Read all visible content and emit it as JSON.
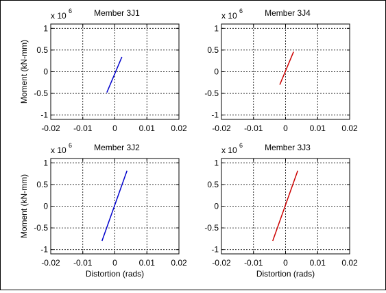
{
  "figure": {
    "background": "#ffffff",
    "grid": true
  },
  "chart_data": [
    {
      "type": "line",
      "title": "Member 3J1",
      "xlabel": "",
      "ylabel": "Moment (kN-mm)",
      "exponent_base": "x 10",
      "exponent_power": "6",
      "xlim": [
        -0.02,
        0.02
      ],
      "ylim": [
        -1.1,
        1.1
      ],
      "xticks": [
        -0.02,
        -0.01,
        0,
        0.01,
        0.02
      ],
      "xtick_labels": [
        "-0.02",
        "-0.01",
        "0",
        "0.01",
        "0.02"
      ],
      "yticks": [
        -1,
        -0.5,
        0,
        0.5,
        1
      ],
      "ytick_labels": [
        "-1",
        "-0.5",
        "0",
        "0.5",
        "1"
      ],
      "series": [
        {
          "color": "#0000cc",
          "x": [
            -0.0025,
            0.0022
          ],
          "y": [
            -0.48,
            0.34
          ]
        }
      ]
    },
    {
      "type": "line",
      "title": "Member 3J4",
      "xlabel": "",
      "ylabel": "",
      "exponent_base": "x 10",
      "exponent_power": "6",
      "xlim": [
        -0.02,
        0.02
      ],
      "ylim": [
        -1.1,
        1.1
      ],
      "xticks": [
        -0.02,
        -0.01,
        0,
        0.01,
        0.02
      ],
      "xtick_labels": [
        "-0.02",
        "-0.01",
        "0",
        "0.01",
        "0.02"
      ],
      "yticks": [
        -1,
        -0.5,
        0,
        0.5,
        1
      ],
      "ytick_labels": [
        "-1",
        "-0.5",
        "0",
        "0.5",
        "1"
      ],
      "series": [
        {
          "color": "#cc0000",
          "x": [
            -0.0018,
            0.0025
          ],
          "y": [
            -0.3,
            0.46
          ]
        }
      ]
    },
    {
      "type": "line",
      "title": "Member 3J2",
      "xlabel": "Distortion (rads)",
      "ylabel": "Moment (kN-mm)",
      "exponent_base": "x 10",
      "exponent_power": "6",
      "xlim": [
        -0.02,
        0.02
      ],
      "ylim": [
        -1.1,
        1.1
      ],
      "xticks": [
        -0.02,
        -0.01,
        0,
        0.01,
        0.02
      ],
      "xtick_labels": [
        "-0.02",
        "-0.01",
        "0",
        "0.01",
        "0.02"
      ],
      "yticks": [
        -1,
        -0.5,
        0,
        0.5,
        1
      ],
      "ytick_labels": [
        "-1",
        "-0.5",
        "0",
        "0.5",
        "1"
      ],
      "series": [
        {
          "color": "#0000cc",
          "x": [
            -0.004,
            0.0038
          ],
          "y": [
            -0.8,
            0.82
          ]
        }
      ]
    },
    {
      "type": "line",
      "title": "Member 3J3",
      "xlabel": "Distortion (rads)",
      "ylabel": "",
      "exponent_base": "x 10",
      "exponent_power": "6",
      "xlim": [
        -0.02,
        0.02
      ],
      "ylim": [
        -1.1,
        1.1
      ],
      "xticks": [
        -0.02,
        -0.01,
        0,
        0.01,
        0.02
      ],
      "xtick_labels": [
        "-0.02",
        "-0.01",
        "0",
        "0.01",
        "0.02"
      ],
      "yticks": [
        -1,
        -0.5,
        0,
        0.5,
        1
      ],
      "ytick_labels": [
        "-1",
        "-0.5",
        "0",
        "0.5",
        "1"
      ],
      "series": [
        {
          "color": "#cc0000",
          "x": [
            -0.004,
            0.0038
          ],
          "y": [
            -0.8,
            0.82
          ]
        }
      ]
    }
  ]
}
